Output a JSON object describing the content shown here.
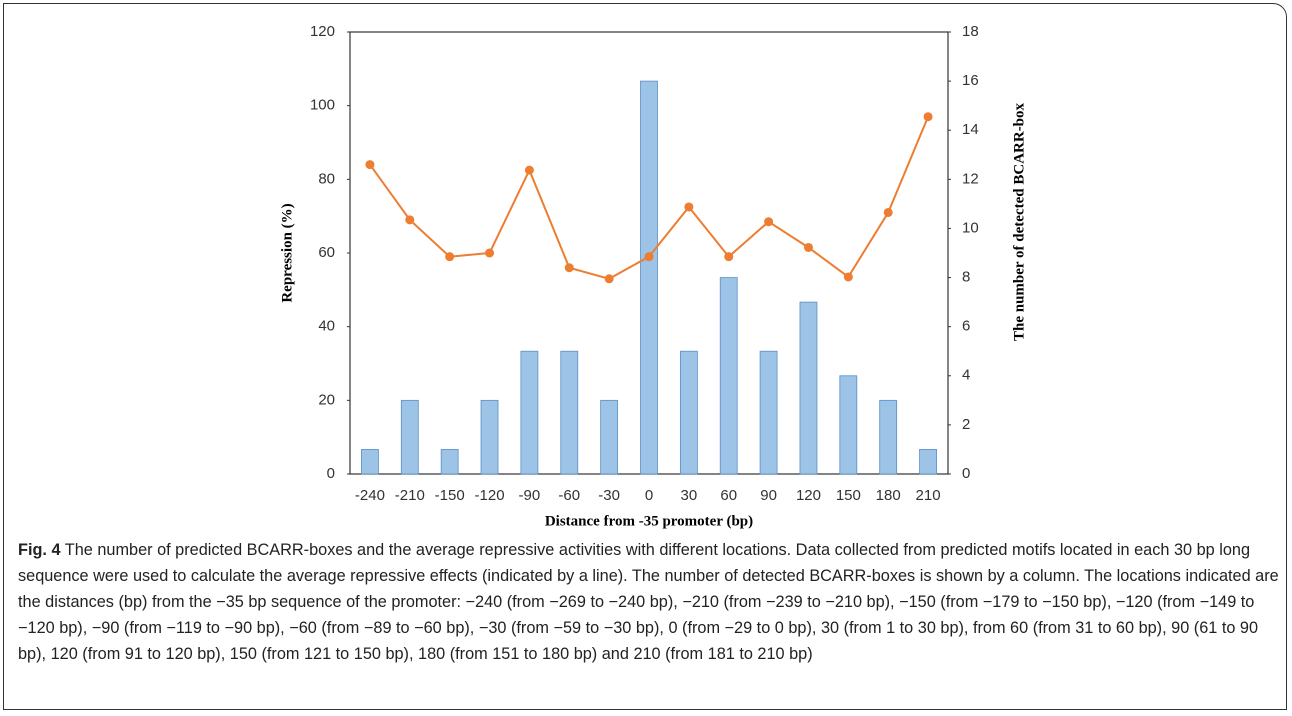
{
  "chart_data": {
    "type": "combo",
    "categories": [
      "-240",
      "-210",
      "-150",
      "-120",
      "-90",
      "-60",
      "-30",
      "0",
      "30",
      "60",
      "90",
      "120",
      "150",
      "180",
      "210"
    ],
    "series": [
      {
        "type": "bar",
        "axis": "y2",
        "color": "#9dc3e6",
        "values": [
          1,
          3,
          1,
          3,
          5,
          5,
          3,
          16,
          5,
          8,
          5,
          7,
          4,
          3,
          1
        ]
      },
      {
        "type": "line",
        "axis": "y",
        "color": "#ed7d31",
        "values": [
          84,
          69,
          59,
          60,
          82.5,
          56,
          53,
          59,
          72.5,
          59,
          68.5,
          61.5,
          53.5,
          71,
          97
        ]
      }
    ],
    "ylim": [
      0,
      120
    ],
    "yticks": [
      0,
      20,
      40,
      60,
      80,
      100,
      120
    ],
    "y2lim": [
      0,
      18
    ],
    "y2ticks": [
      0,
      2,
      4,
      6,
      8,
      10,
      12,
      14,
      16,
      18
    ],
    "ylabel": "Repression (%)",
    "y2label": "The number of  detected BCARR-box",
    "xlabel": "Distance from -35 promoter (bp)",
    "grid": false
  },
  "caption": {
    "label": "Fig. 4",
    "text": "The number of predicted BCARR-boxes and the average repressive activities with different locations. Data collected from predicted motifs located in each 30 bp long sequence were used to calculate the average repressive effects (indicated by a line). The number of detected BCARR-boxes is shown by a column. The locations indicated are the distances (bp) from the −35 bp sequence of the promoter: −240 (from −269 to −240 bp), −210 (from −239 to −210 bp), −150 (from −179 to −150 bp), −120 (from −149 to −120 bp), −90 (from −119 to −90 bp), −60 (from −89 to −60 bp), −30 (from −59 to −30 bp), 0 (from −29 to 0 bp), 30 (from 1 to 30 bp), from 60 (from 31 to 60 bp), 90 (61 to 90 bp), 120 (from 91 to 120 bp), 150 (from 121 to 150 bp), 180 (from 151 to 180 bp) and 210 (from 181 to 210 bp)"
  }
}
